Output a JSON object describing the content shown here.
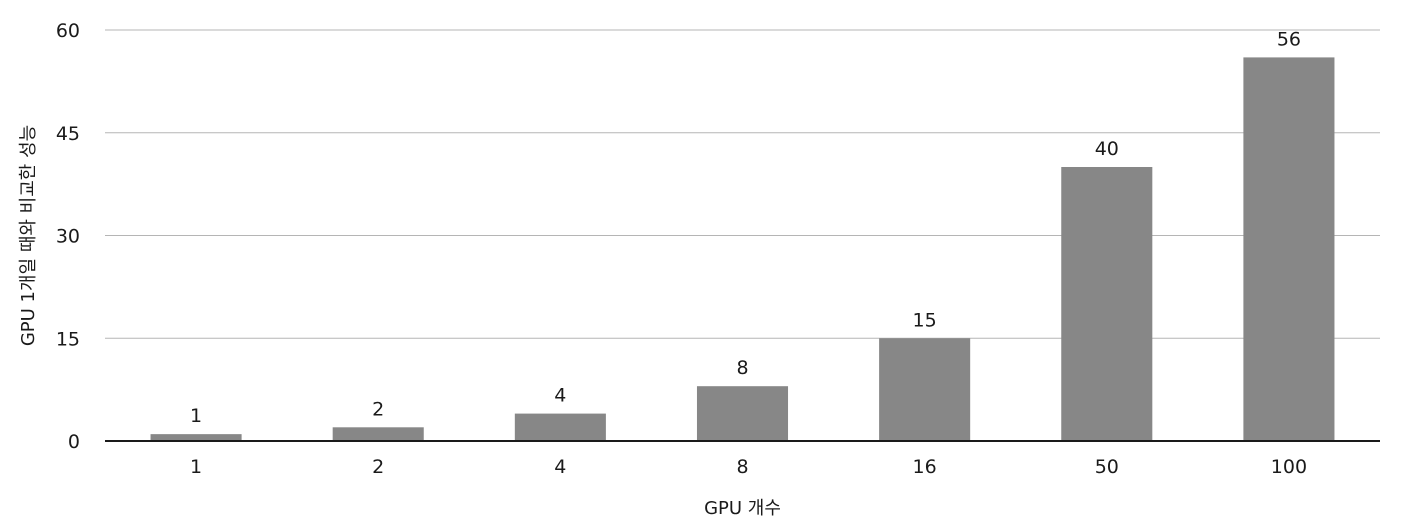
{
  "chart_data": {
    "type": "bar",
    "categories": [
      "1",
      "2",
      "4",
      "8",
      "16",
      "50",
      "100"
    ],
    "values": [
      1,
      2,
      4,
      8,
      15,
      40,
      56
    ],
    "data_labels": [
      "1",
      "2",
      "4",
      "8",
      "15",
      "40",
      "56"
    ],
    "xlabel": "GPU 개수",
    "ylabel": "GPU 1개일 때와 비교한 성능",
    "ylim": [
      0,
      60
    ],
    "yticks": [
      0,
      15,
      30,
      45,
      60
    ],
    "ytick_labels": [
      "0",
      "15",
      "30",
      "45",
      "60"
    ],
    "grid": true,
    "bar_color": "#878787",
    "gridline_color": "#b5b5b5"
  }
}
